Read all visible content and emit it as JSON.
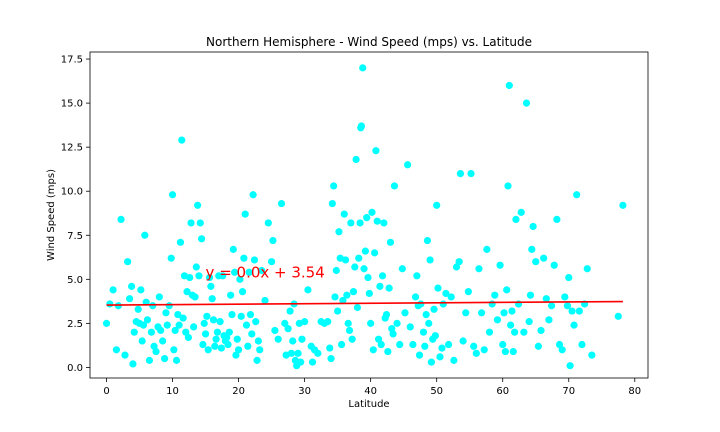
{
  "chart_data": {
    "type": "scatter",
    "title": "Northern Hemisphere - Wind Speed (mps) vs. Latitude",
    "xlabel": "Latitude",
    "ylabel": "Wind Speed (mps)",
    "xlim": [
      -2.5,
      82
    ],
    "ylim": [
      -0.6,
      17.9
    ],
    "x_ticks": [
      0,
      10,
      20,
      30,
      40,
      50,
      60,
      70,
      80
    ],
    "x_tick_labels": [
      "0",
      "10",
      "20",
      "30",
      "40",
      "50",
      "60",
      "70",
      "80"
    ],
    "y_ticks": [
      0,
      2.5,
      5,
      7.5,
      10,
      12.5,
      15,
      17.5
    ],
    "y_tick_labels": [
      "0.0",
      "2.5",
      "5.0",
      "7.5",
      "10.0",
      "12.5",
      "15.0",
      "17.5"
    ],
    "grid": false,
    "colors": {
      "points": "#00ffff",
      "regression": "#ff0000",
      "annotation": "#ff0000"
    },
    "regression": {
      "slope": 0.0,
      "intercept": 3.54,
      "x_range": [
        0,
        78.2
      ],
      "y_range": [
        3.54,
        3.74
      ]
    },
    "annotation": {
      "text": "y = 0.0x + 3.54",
      "x": 15,
      "y": 5.1
    },
    "points": [
      [
        0,
        2.5
      ],
      [
        0.5,
        3.6
      ],
      [
        1,
        4.4
      ],
      [
        1.5,
        1.0
      ],
      [
        1.8,
        3.5
      ],
      [
        2.2,
        8.4
      ],
      [
        2.8,
        0.7
      ],
      [
        3.2,
        6.0
      ],
      [
        3.5,
        3.9
      ],
      [
        3.8,
        4.6
      ],
      [
        4,
        0.2
      ],
      [
        4.2,
        2.0
      ],
      [
        4.5,
        2.6
      ],
      [
        4.8,
        3.3
      ],
      [
        5,
        2.5
      ],
      [
        5.2,
        4.4
      ],
      [
        5.4,
        1.5
      ],
      [
        5.6,
        2.4
      ],
      [
        5.8,
        7.5
      ],
      [
        6,
        3.7
      ],
      [
        6.2,
        2.7
      ],
      [
        6.5,
        0.4
      ],
      [
        6.8,
        2.0
      ],
      [
        7,
        3.5
      ],
      [
        7.2,
        1.2
      ],
      [
        7.5,
        0.9
      ],
      [
        7.8,
        2.3
      ],
      [
        8,
        4.0
      ],
      [
        8.2,
        2.1
      ],
      [
        8.5,
        1.5
      ],
      [
        8.8,
        0.5
      ],
      [
        9,
        3.1
      ],
      [
        9.2,
        2.4
      ],
      [
        9.5,
        3.5
      ],
      [
        9.8,
        6.2
      ],
      [
        10,
        9.8
      ],
      [
        10.2,
        1.0
      ],
      [
        10.4,
        2.1
      ],
      [
        10.6,
        0.4
      ],
      [
        10.8,
        3.0
      ],
      [
        11,
        2.4
      ],
      [
        11.2,
        7.1
      ],
      [
        11.4,
        12.9
      ],
      [
        11.6,
        2.8
      ],
      [
        11.8,
        5.2
      ],
      [
        12,
        2.0
      ],
      [
        12.2,
        4.3
      ],
      [
        12.4,
        1.7
      ],
      [
        12.6,
        5.1
      ],
      [
        12.8,
        8.2
      ],
      [
        13,
        4.1
      ],
      [
        13.2,
        2.3
      ],
      [
        13.4,
        4.0
      ],
      [
        13.6,
        5.7
      ],
      [
        13.8,
        9.2
      ],
      [
        14,
        5.2
      ],
      [
        14.2,
        8.2
      ],
      [
        14.4,
        7.3
      ],
      [
        14.6,
        1.3
      ],
      [
        14.8,
        2.5
      ],
      [
        15,
        1.9
      ],
      [
        15.2,
        2.9
      ],
      [
        15.4,
        1.0
      ],
      [
        15.6,
        5.1
      ],
      [
        15.8,
        4.6
      ],
      [
        16,
        3.9
      ],
      [
        16.2,
        2.7
      ],
      [
        16.4,
        1.2
      ],
      [
        16.6,
        1.6
      ],
      [
        16.8,
        2.0
      ],
      [
        17,
        5.2
      ],
      [
        17.2,
        2.6
      ],
      [
        17.4,
        1.1
      ],
      [
        17.6,
        5.2
      ],
      [
        17.8,
        1.8
      ],
      [
        18,
        1.5
      ],
      [
        18.2,
        1.7
      ],
      [
        18.4,
        1.3
      ],
      [
        18.6,
        2.0
      ],
      [
        18.8,
        4.1
      ],
      [
        19,
        3.0
      ],
      [
        19.2,
        6.7
      ],
      [
        19.4,
        5.4
      ],
      [
        19.6,
        0.7
      ],
      [
        19.8,
        1.6
      ],
      [
        20,
        1.0
      ],
      [
        20.2,
        5.0
      ],
      [
        20.4,
        2.9
      ],
      [
        20.6,
        4.3
      ],
      [
        20.8,
        6.2
      ],
      [
        21,
        8.7
      ],
      [
        21.2,
        2.4
      ],
      [
        21.4,
        1.2
      ],
      [
        21.6,
        5.4
      ],
      [
        21.8,
        3.0
      ],
      [
        22,
        1.9
      ],
      [
        22.2,
        9.8
      ],
      [
        22.4,
        6.1
      ],
      [
        22.6,
        2.6
      ],
      [
        22.8,
        0.4
      ],
      [
        23,
        1.5
      ],
      [
        23.2,
        1.0
      ],
      [
        23.5,
        5.5
      ],
      [
        24,
        3.8
      ],
      [
        24.5,
        8.2
      ],
      [
        25,
        6.0
      ],
      [
        25.2,
        7.2
      ],
      [
        25.5,
        2.1
      ],
      [
        26,
        1.6
      ],
      [
        26.5,
        9.3
      ],
      [
        27,
        2.5
      ],
      [
        27.2,
        0.7
      ],
      [
        27.5,
        2.2
      ],
      [
        27.8,
        3.2
      ],
      [
        28,
        0.8
      ],
      [
        28.2,
        1.5
      ],
      [
        28.4,
        3.6
      ],
      [
        28.6,
        0.4
      ],
      [
        28.8,
        0.1
      ],
      [
        29,
        0.8
      ],
      [
        29.2,
        2.5
      ],
      [
        29.4,
        0.3
      ],
      [
        29.6,
        1.6
      ],
      [
        30,
        2.6
      ],
      [
        30.5,
        4.4
      ],
      [
        31,
        1.2
      ],
      [
        31.2,
        0.3
      ],
      [
        31.5,
        1.0
      ],
      [
        32,
        0.8
      ],
      [
        32.5,
        2.6
      ],
      [
        33,
        2.5
      ],
      [
        33.5,
        2.6
      ],
      [
        33.8,
        1.1
      ],
      [
        34,
        0.5
      ],
      [
        34.2,
        9.3
      ],
      [
        34.4,
        10.3
      ],
      [
        34.6,
        4.0
      ],
      [
        34.8,
        5.5
      ],
      [
        35,
        3.2
      ],
      [
        35.2,
        7.7
      ],
      [
        35.4,
        6.2
      ],
      [
        35.6,
        1.3
      ],
      [
        35.8,
        3.8
      ],
      [
        36,
        8.7
      ],
      [
        36.2,
        6.1
      ],
      [
        36.4,
        4.1
      ],
      [
        36.6,
        2.5
      ],
      [
        36.8,
        2.1
      ],
      [
        37,
        8.2
      ],
      [
        37.2,
        1.6
      ],
      [
        37.4,
        4.3
      ],
      [
        37.6,
        5.7
      ],
      [
        37.8,
        11.8
      ],
      [
        38,
        3.4
      ],
      [
        38.2,
        6.2
      ],
      [
        38.4,
        8.2
      ],
      [
        38.5,
        13.6
      ],
      [
        38.6,
        13.7
      ],
      [
        38.8,
        17.0
      ],
      [
        39,
        5.6
      ],
      [
        39.2,
        6.6
      ],
      [
        39.4,
        8.5
      ],
      [
        39.6,
        5.1
      ],
      [
        39.8,
        4.2
      ],
      [
        40,
        2.5
      ],
      [
        40.2,
        8.8
      ],
      [
        40.4,
        1.0
      ],
      [
        40.6,
        6.5
      ],
      [
        40.8,
        12.3
      ],
      [
        41,
        8.3
      ],
      [
        41.2,
        1.6
      ],
      [
        41.4,
        4.6
      ],
      [
        41.6,
        1.3
      ],
      [
        41.8,
        5.2
      ],
      [
        42,
        8.2
      ],
      [
        42.2,
        2.8
      ],
      [
        42.4,
        3.0
      ],
      [
        42.6,
        0.9
      ],
      [
        42.8,
        4.5
      ],
      [
        43,
        7.1
      ],
      [
        43.2,
        2.2
      ],
      [
        43.4,
        1.9
      ],
      [
        43.6,
        10.3
      ],
      [
        44,
        2.5
      ],
      [
        44.4,
        1.3
      ],
      [
        44.8,
        5.6
      ],
      [
        45.2,
        3.1
      ],
      [
        45.6,
        11.5
      ],
      [
        46,
        2.3
      ],
      [
        46.4,
        1.3
      ],
      [
        46.8,
        4.0
      ],
      [
        47,
        5.2
      ],
      [
        47.2,
        3.5
      ],
      [
        47.4,
        0.7
      ],
      [
        47.6,
        3.6
      ],
      [
        48,
        2.0
      ],
      [
        48.2,
        1.2
      ],
      [
        48.4,
        3.0
      ],
      [
        48.6,
        7.2
      ],
      [
        48.8,
        2.5
      ],
      [
        49,
        6.1
      ],
      [
        49.2,
        0.3
      ],
      [
        49.4,
        1.6
      ],
      [
        49.6,
        3.3
      ],
      [
        49.8,
        1.8
      ],
      [
        50,
        9.2
      ],
      [
        50.2,
        4.5
      ],
      [
        50.5,
        0.6
      ],
      [
        50.8,
        1.1
      ],
      [
        51,
        3.6
      ],
      [
        51.4,
        4.2
      ],
      [
        51.8,
        1.3
      ],
      [
        52.2,
        4.0
      ],
      [
        52.6,
        0.4
      ],
      [
        53,
        5.7
      ],
      [
        53.4,
        6.0
      ],
      [
        53.6,
        11.0
      ],
      [
        54,
        1.5
      ],
      [
        54.4,
        3.1
      ],
      [
        54.8,
        4.3
      ],
      [
        55.2,
        11.0
      ],
      [
        55.6,
        1.2
      ],
      [
        56,
        0.8
      ],
      [
        56.4,
        5.6
      ],
      [
        56.8,
        3.1
      ],
      [
        57.2,
        1.0
      ],
      [
        57.6,
        6.7
      ],
      [
        58,
        2.0
      ],
      [
        58.4,
        3.6
      ],
      [
        58.8,
        4.1
      ],
      [
        59.2,
        2.7
      ],
      [
        59.6,
        5.8
      ],
      [
        60,
        1.3
      ],
      [
        60.2,
        3.1
      ],
      [
        60.4,
        0.9
      ],
      [
        60.6,
        4.4
      ],
      [
        60.8,
        10.3
      ],
      [
        61,
        16.0
      ],
      [
        61.2,
        2.4
      ],
      [
        61.4,
        3.2
      ],
      [
        61.6,
        0.9
      ],
      [
        61.8,
        2.0
      ],
      [
        62,
        8.4
      ],
      [
        62.4,
        3.6
      ],
      [
        62.8,
        8.8
      ],
      [
        63.2,
        2.0
      ],
      [
        63.6,
        15.0
      ],
      [
        64,
        2.6
      ],
      [
        64.2,
        4.1
      ],
      [
        64.4,
        6.7
      ],
      [
        64.6,
        8.0
      ],
      [
        65,
        6.0
      ],
      [
        65.4,
        1.2
      ],
      [
        65.8,
        2.1
      ],
      [
        66.2,
        6.2
      ],
      [
        66.6,
        3.9
      ],
      [
        67,
        2.7
      ],
      [
        67.4,
        3.5
      ],
      [
        67.8,
        5.8
      ],
      [
        68.2,
        8.4
      ],
      [
        68.6,
        1.3
      ],
      [
        69,
        1.0
      ],
      [
        69.4,
        4.0
      ],
      [
        69.8,
        3.5
      ],
      [
        70,
        5.1
      ],
      [
        70.2,
        0.1
      ],
      [
        70.5,
        3.2
      ],
      [
        70.8,
        2.4
      ],
      [
        71.2,
        9.8
      ],
      [
        71.6,
        3.2
      ],
      [
        72,
        1.3
      ],
      [
        72.4,
        3.6
      ],
      [
        72.8,
        5.6
      ],
      [
        73.5,
        0.7
      ],
      [
        77.5,
        2.9
      ],
      [
        78.2,
        9.2
      ]
    ]
  }
}
